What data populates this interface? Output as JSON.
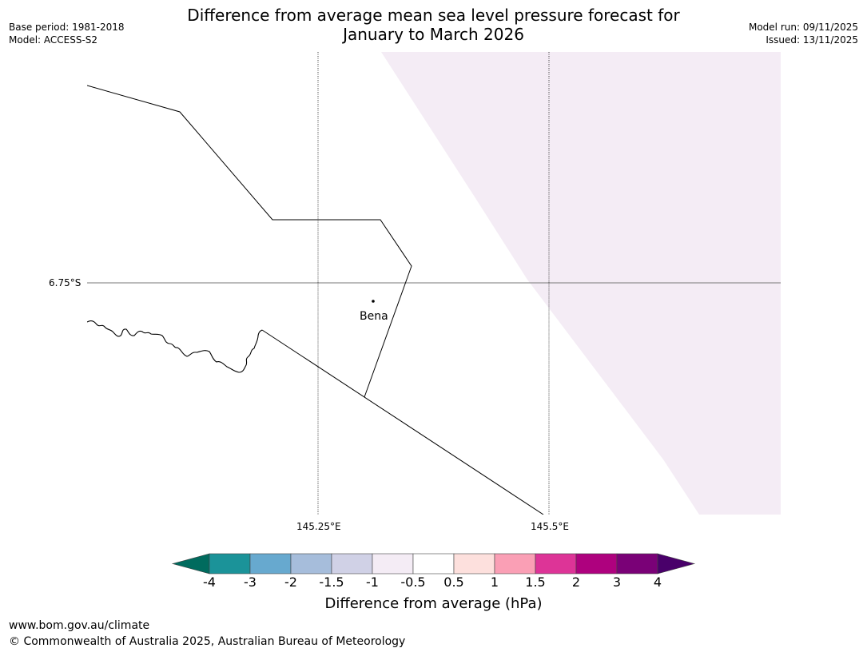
{
  "header": {
    "base_period": "Base period: 1981-2018",
    "model": "Model: ACCESS-S2",
    "title_line1": "Difference from average mean sea level pressure forecast for",
    "title_line2": "January to March 2026",
    "model_run": "Model run: 09/11/2025",
    "issued": "Issued: 13/11/2025"
  },
  "map": {
    "lat_label": "6.75°S",
    "lon_labels": [
      "145.25°E",
      "145.5°E"
    ],
    "place_label": "Bena",
    "shading_category": "-1 to -0.5",
    "shading_color": "#f4ecf5"
  },
  "colorbar": {
    "label": "Difference from average (hPa)",
    "ticks": [
      "-4",
      "-3",
      "-2",
      "-1.5",
      "-1",
      "-0.5",
      "0.5",
      "1",
      "1.5",
      "2",
      "3",
      "4"
    ],
    "colors": [
      "#006b5e",
      "#1b9399",
      "#67a9cf",
      "#a6bddb",
      "#d0d1e6",
      "#f4ecf5",
      "#ffffff",
      "#fde0dd",
      "#fa9fb5",
      "#dd3497",
      "#ae017e",
      "#7a0177",
      "#49006a"
    ]
  },
  "footer": {
    "url": "www.bom.gov.au/climate",
    "copyright": "© Commonwealth of Australia 2025, Australian Bureau of Meteorology"
  }
}
